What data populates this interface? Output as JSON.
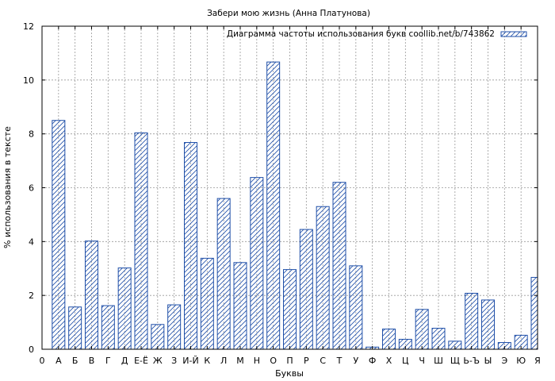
{
  "chart_data": {
    "type": "bar",
    "title": "Забери мою жизнь (Анна Платунова)",
    "xlabel": "Буквы",
    "ylabel": "% использования в тексте",
    "legend": "Диаграмма частоты использования букв coollib.net/b/743862",
    "legend_position": "top-right",
    "grid": true,
    "ylim": [
      0,
      12
    ],
    "yticks": [
      0,
      2,
      4,
      6,
      8,
      10,
      12
    ],
    "bar_color": "#1f4fa8",
    "categories": [
      "0",
      "А",
      "Б",
      "В",
      "Г",
      "Д",
      "Е-Ё",
      "Ж",
      "З",
      "И-Й",
      "К",
      "Л",
      "М",
      "Н",
      "О",
      "П",
      "Р",
      "С",
      "Т",
      "У",
      "Ф",
      "Х",
      "Ц",
      "Ч",
      "Ш",
      "Щ",
      "Ь-Ъ",
      "Ы",
      "Э",
      "Ю",
      "Я"
    ],
    "values": [
      null,
      8.5,
      1.57,
      4.02,
      1.62,
      3.02,
      8.04,
      0.92,
      1.65,
      7.68,
      3.38,
      5.6,
      3.22,
      6.38,
      10.67,
      2.96,
      4.45,
      5.3,
      6.2,
      3.1,
      0.08,
      0.75,
      0.37,
      1.48,
      0.78,
      0.3,
      2.08,
      1.83,
      0.25,
      0.52,
      2.67
    ]
  }
}
